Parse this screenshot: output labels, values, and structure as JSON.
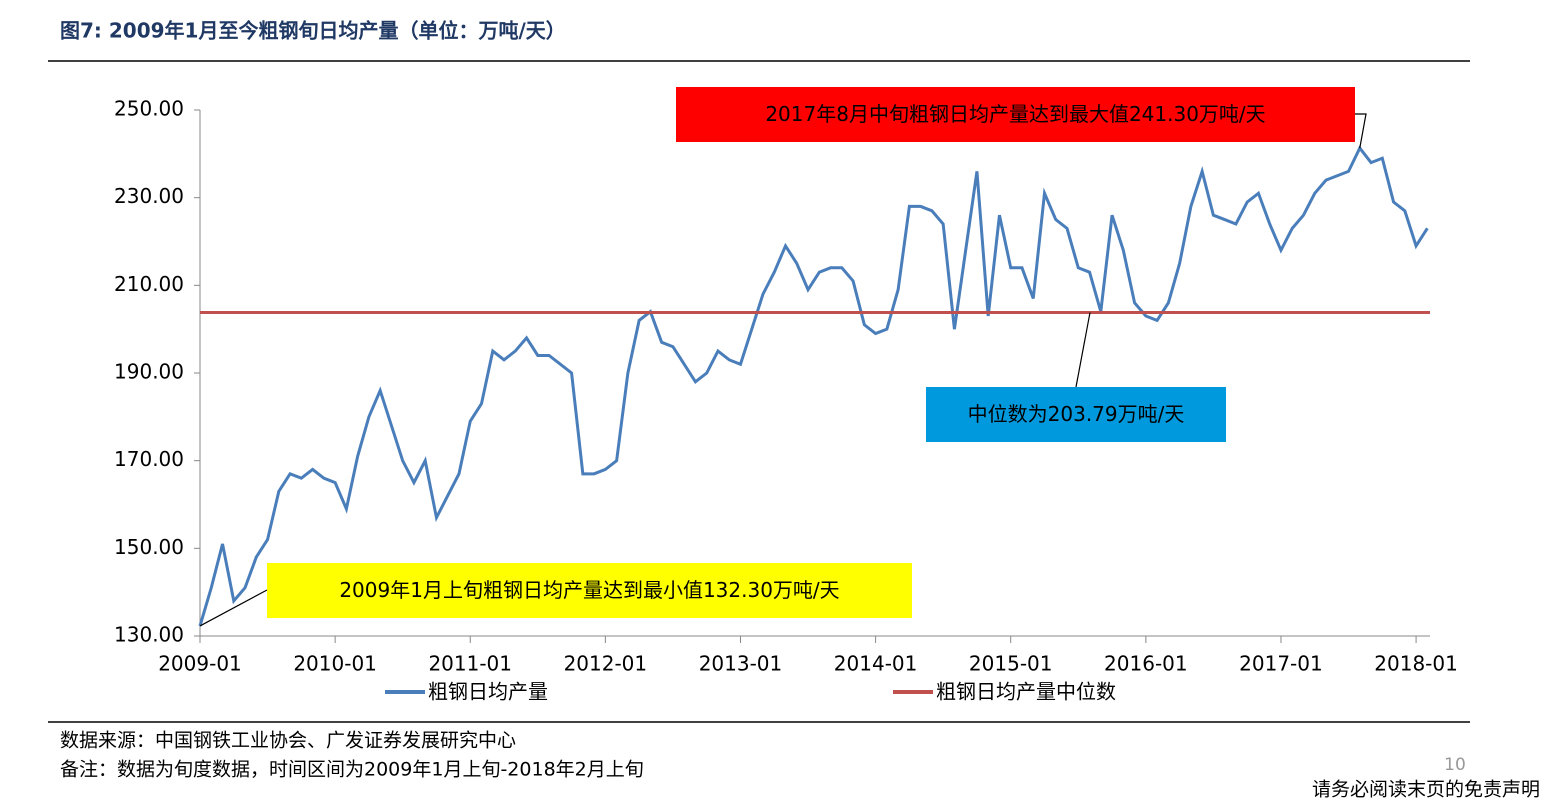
{
  "header": {
    "title": "图7:  2009年1月至今粗钢旬日均产量（单位：万吨/天）"
  },
  "chart_data": {
    "type": "line",
    "x": [
      "2009-01",
      "2009-02",
      "2009-03",
      "2009-04",
      "2009-05",
      "2009-06",
      "2009-07",
      "2009-08",
      "2009-09",
      "2009-10",
      "2009-11",
      "2009-12",
      "2010-01",
      "2010-02",
      "2010-03",
      "2010-04",
      "2010-05",
      "2010-06",
      "2010-07",
      "2010-08",
      "2010-09",
      "2010-10",
      "2010-11",
      "2010-12",
      "2011-01",
      "2011-02",
      "2011-03",
      "2011-04",
      "2011-05",
      "2011-06",
      "2011-07",
      "2011-08",
      "2011-09",
      "2011-10",
      "2011-11",
      "2011-12",
      "2012-01",
      "2012-02",
      "2012-03",
      "2012-04",
      "2012-05",
      "2012-06",
      "2012-07",
      "2012-08",
      "2012-09",
      "2012-10",
      "2012-11",
      "2012-12",
      "2013-01",
      "2013-02",
      "2013-03",
      "2013-04",
      "2013-05",
      "2013-06",
      "2013-07",
      "2013-08",
      "2013-09",
      "2013-10",
      "2013-11",
      "2013-12",
      "2014-01",
      "2014-02",
      "2014-03",
      "2014-04",
      "2014-05",
      "2014-06",
      "2014-07",
      "2014-08",
      "2014-09",
      "2014-10",
      "2014-11",
      "2014-12",
      "2015-01",
      "2015-02",
      "2015-03",
      "2015-04",
      "2015-05",
      "2015-06",
      "2015-07",
      "2015-08",
      "2015-09",
      "2015-10",
      "2015-11",
      "2015-12",
      "2016-01",
      "2016-02",
      "2016-03",
      "2016-04",
      "2016-05",
      "2016-06",
      "2016-07",
      "2016-08",
      "2016-09",
      "2016-10",
      "2016-11",
      "2016-12",
      "2017-01",
      "2017-02",
      "2017-03",
      "2017-04",
      "2017-05",
      "2017-06",
      "2017-07",
      "2017-08",
      "2017-09",
      "2017-10",
      "2017-11",
      "2017-12",
      "2018-01",
      "2018-02"
    ],
    "series": [
      {
        "name": "粗钢日均产量",
        "color": "#4a7ebb",
        "values": [
          132.3,
          141,
          151,
          138,
          141,
          148,
          152,
          163,
          167,
          166,
          168,
          166,
          165,
          159,
          171,
          180,
          186,
          178,
          170,
          165,
          170,
          157,
          162,
          167,
          179,
          183,
          195,
          193,
          195,
          198,
          194,
          194,
          192,
          190,
          167,
          167,
          168,
          170,
          190,
          202,
          204,
          197,
          196,
          192,
          188,
          190,
          195,
          193,
          192,
          200,
          208,
          213,
          219,
          215,
          209,
          213,
          214,
          214,
          211,
          201,
          199,
          200,
          209,
          228,
          228,
          227,
          224,
          200,
          218,
          236,
          203,
          226,
          214,
          214,
          207,
          231,
          225,
          223,
          214,
          213,
          204,
          226,
          218,
          206,
          203,
          202,
          206,
          215,
          228,
          236,
          226,
          225,
          224,
          229,
          231,
          224,
          218,
          223,
          226,
          231,
          234,
          235,
          236,
          241.3,
          238,
          239,
          229,
          227,
          219,
          223
        ]
      },
      {
        "name": "粗钢日均产量中位数",
        "color": "#c0504d",
        "value": 203.79
      }
    ],
    "ylim": [
      130,
      250
    ],
    "yticks": [
      {
        "value": 130,
        "label": "130.00"
      },
      {
        "value": 150,
        "label": "150.00"
      },
      {
        "value": 170,
        "label": "170.00"
      },
      {
        "value": 190,
        "label": "190.00"
      },
      {
        "value": 210,
        "label": "210.00"
      },
      {
        "value": 230,
        "label": "230.00"
      },
      {
        "value": 250,
        "label": "250.00"
      }
    ],
    "xticks": [
      "2009-01",
      "2010-01",
      "2011-01",
      "2012-01",
      "2013-01",
      "2014-01",
      "2015-01",
      "2016-01",
      "2017-01",
      "2018-01"
    ],
    "annotations": [
      {
        "text": "2017年8月中旬粗钢日均产量达到最大值241.30万吨/天",
        "color": "#ff0000"
      },
      {
        "text": "中位数为203.79万吨/天",
        "color": "#0099dd"
      },
      {
        "text": "2009年1月上旬粗钢日均产量达到最小值132.30万吨/天",
        "color": "#ffff00"
      }
    ]
  },
  "footer": {
    "source": "数据来源：中国钢铁工业协会、广发证券发展研究中心",
    "note": "备注：数据为旬度数据，时间区间为2009年1月上旬-2018年2月上旬",
    "page": "10",
    "disclaimer": "请务必阅读末页的免责声明"
  }
}
